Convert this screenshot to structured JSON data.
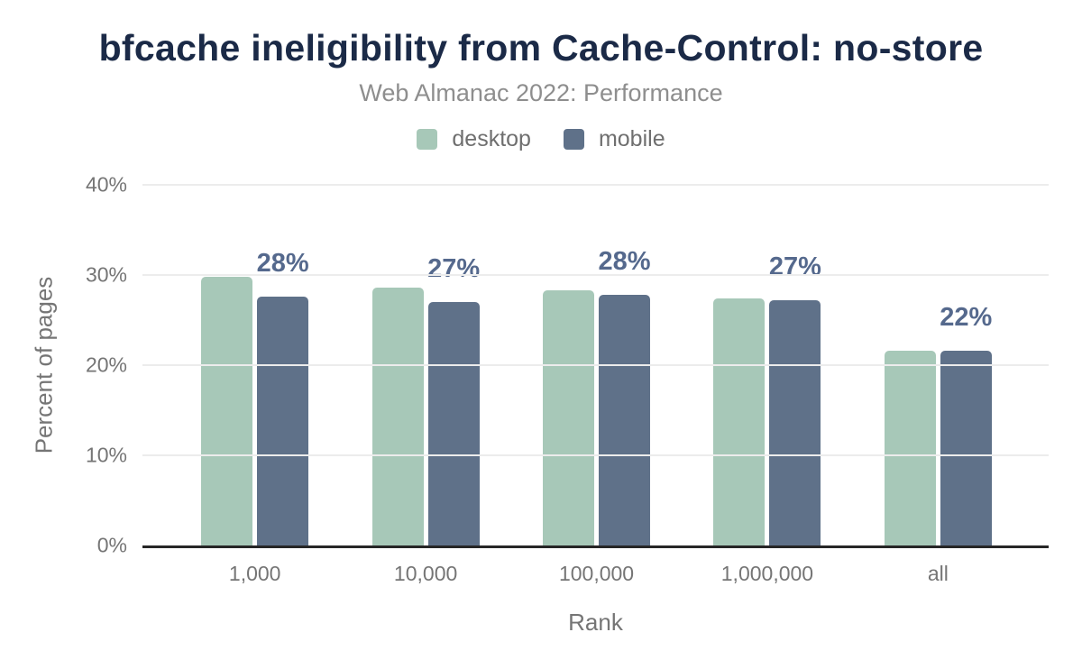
{
  "chart_data": {
    "type": "bar",
    "title": "bfcache ineligibility from Cache-Control: no-store",
    "subtitle": "Web Almanac 2022: Performance",
    "categories": [
      "1,000",
      "10,000",
      "100,000",
      "1,000,000",
      "all"
    ],
    "series": [
      {
        "name": "desktop",
        "color": "#a7c8b8",
        "values": [
          29.8,
          28.6,
          28.3,
          27.4,
          21.6
        ]
      },
      {
        "name": "mobile",
        "color": "#5f7189",
        "values": [
          27.6,
          27.0,
          27.8,
          27.2,
          21.6
        ]
      }
    ],
    "data_labels": {
      "series": "mobile",
      "values": [
        "28%",
        "27%",
        "28%",
        "27%",
        "22%"
      ]
    },
    "xlabel": "Rank",
    "ylabel": "Percent of pages",
    "ylim": [
      0,
      40
    ],
    "y_ticks": [
      {
        "label": "0%",
        "value": 0
      },
      {
        "label": "10%",
        "value": 10
      },
      {
        "label": "20%",
        "value": 20
      },
      {
        "label": "30%",
        "value": 30
      },
      {
        "label": "40%",
        "value": 40
      }
    ],
    "grid": true,
    "legend_position": "top",
    "colors": {
      "title": "#1b2a47",
      "subtitle": "#8e8e8e",
      "axis_text": "#757575",
      "data_label": "#55698d",
      "axis_line": "#262626",
      "gridline": "#ececec"
    }
  }
}
